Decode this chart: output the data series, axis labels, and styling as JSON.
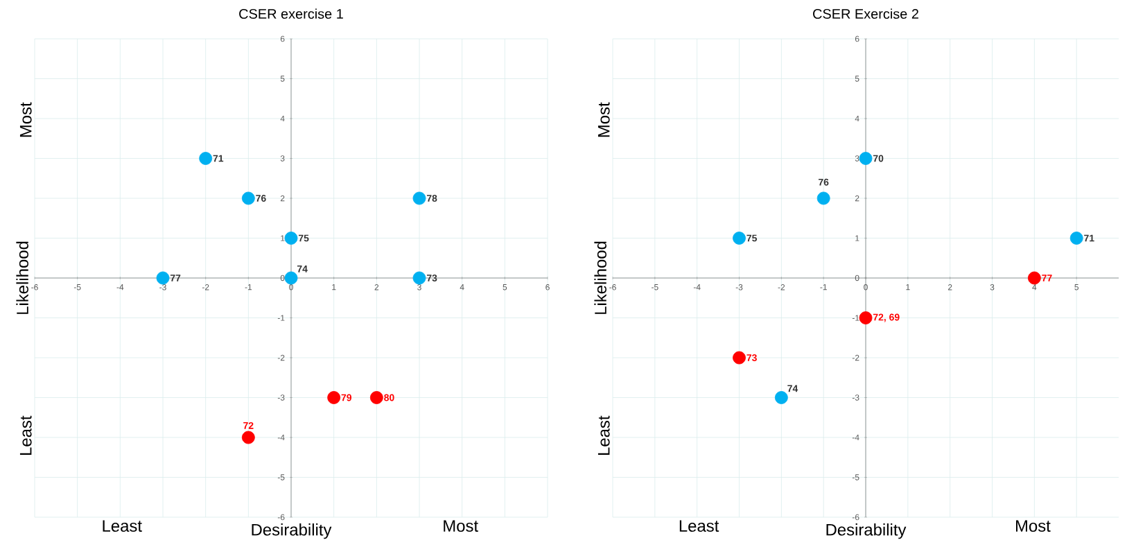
{
  "chart_data": [
    {
      "type": "scatter",
      "title": "CSER exercise 1",
      "xlabel": "Desirability",
      "ylabel": "Likelihood",
      "annotations": [
        "Least",
        "Most",
        "Most",
        "Least",
        {
          "text": "71",
          "x": -2,
          "y": 3
        },
        {
          "text": "76",
          "x": -1,
          "y": 2
        },
        {
          "text": "78",
          "x": 3,
          "y": 2
        },
        {
          "text": "75",
          "x": 0,
          "y": 1
        },
        {
          "text": "77",
          "x": -3,
          "y": 0
        },
        {
          "text": "74",
          "x": 0,
          "y": 0
        },
        {
          "text": "73",
          "x": 3,
          "y": 0
        },
        {
          "text": "72",
          "x": -1,
          "y": -4
        },
        {
          "text": "79",
          "x": 1,
          "y": -3
        },
        {
          "text": "80",
          "x": 2,
          "y": -3
        }
      ],
      "xlim": [
        -6,
        6
      ],
      "ylim": [
        -6,
        6
      ],
      "xticks": [
        -6,
        -5,
        -4,
        -3,
        -2,
        -1,
        0,
        1,
        2,
        3,
        4,
        5,
        6
      ],
      "yticks": [
        -6,
        -5,
        -4,
        -3,
        -2,
        -1,
        0,
        1,
        2,
        3,
        4,
        5,
        6
      ],
      "grid": true,
      "marker": "circle",
      "series": [
        {
          "color": "#00b0f0",
          "x": [
            -2,
            -1,
            3,
            0,
            -3,
            0,
            3
          ],
          "values": [
            3,
            2,
            2,
            1,
            0,
            0,
            0
          ]
        },
        {
          "color": "#ff0000",
          "x": [
            -1,
            1,
            2
          ],
          "values": [
            -4,
            -3,
            -3
          ]
        }
      ]
    },
    {
      "type": "scatter",
      "title": "CSER Exercise 2",
      "xlabel": "Desirability",
      "ylabel": "Likelihood",
      "annotations": [
        "Least",
        "Most",
        "Most",
        "Least",
        {
          "text": "70",
          "x": 0,
          "y": 3
        },
        {
          "text": "76",
          "x": -1,
          "y": 2
        },
        {
          "text": "75",
          "x": -3,
          "y": 1
        },
        {
          "text": "71",
          "x": 5,
          "y": 1
        },
        {
          "text": "74",
          "x": -2,
          "y": -3
        },
        {
          "text": "77",
          "x": 4,
          "y": 0
        },
        {
          "text": "72, 69",
          "x": 0,
          "y": -1
        },
        {
          "text": "73",
          "x": -3,
          "y": -2
        }
      ],
      "xlim": [
        -6,
        6
      ],
      "ylim": [
        -6,
        6
      ],
      "xticks": [
        -6,
        -5,
        -4,
        -3,
        -2,
        -1,
        0,
        1,
        2,
        3,
        4,
        5
      ],
      "yticks": [
        -6,
        -5,
        -4,
        -3,
        -2,
        -1,
        0,
        1,
        2,
        3,
        4,
        5,
        6
      ],
      "grid": true,
      "marker": "circle",
      "series": [
        {
          "color": "#00b0f0",
          "x": [
            0,
            -1,
            -3,
            5,
            -2
          ],
          "values": [
            3,
            2,
            1,
            1,
            -3
          ]
        },
        {
          "color": "#ff0000",
          "x": [
            4,
            0,
            -3
          ],
          "values": [
            0,
            -1,
            -2
          ]
        }
      ]
    }
  ]
}
